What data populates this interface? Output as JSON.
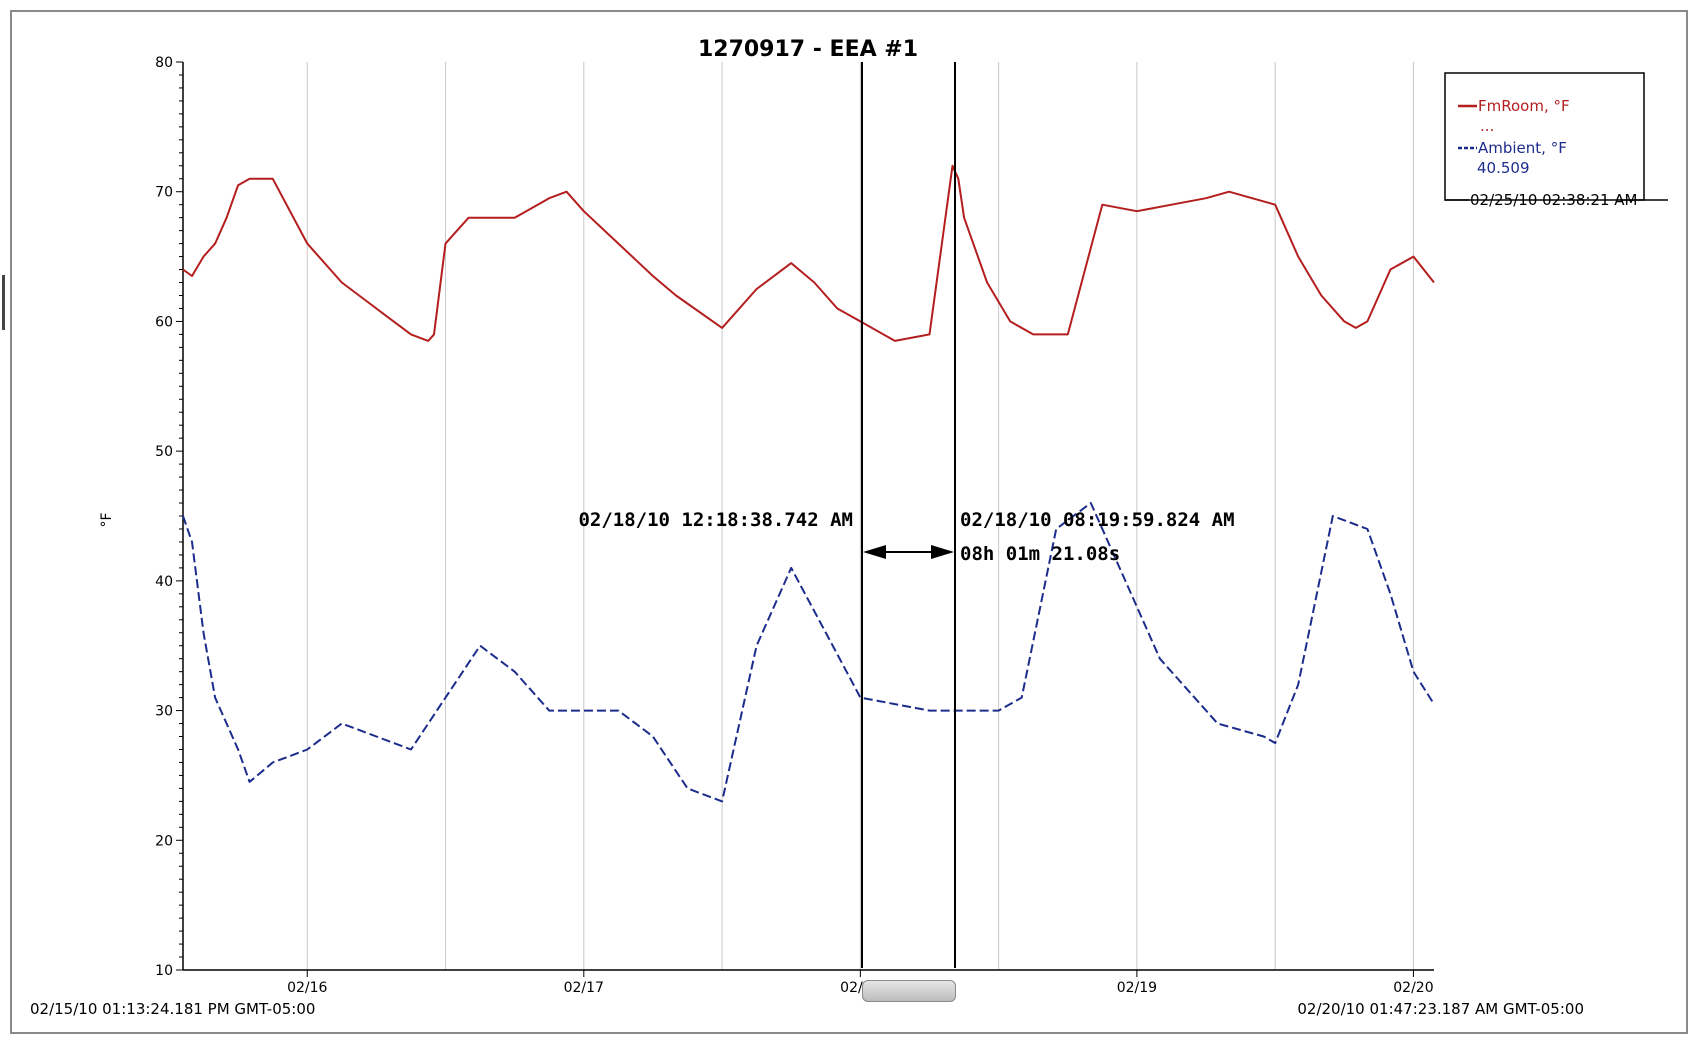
{
  "chart_data": {
    "type": "line",
    "title": "1270917 - EEA #1",
    "ylabel": "°F",
    "ylim": [
      10,
      80
    ],
    "yticks": [
      10,
      20,
      30,
      40,
      50,
      60,
      70,
      80
    ],
    "xlim": [
      "2010-02-15 13:13",
      "2010-02-20 01:47"
    ],
    "x_tick_labels": [
      "02/16",
      "02/17",
      "02/18",
      "02/19",
      "02/20"
    ],
    "x_ticks": [
      "2010-02-16 00:00",
      "2010-02-17 00:00",
      "2010-02-18 00:00",
      "2010-02-19 00:00",
      "2010-02-20 00:00"
    ],
    "grid": "vertical lines every 12 hours",
    "range_start": "02/15/10 01:13:24.181 PM GMT-05:00",
    "range_end": "02/20/10 01:47:23.187 AM GMT-05:00",
    "cursor_a": "02/18/10 12:18:38.742 AM",
    "cursor_b": "02/18/10 08:19:59.824 AM",
    "cursor_delta": "08h 01m 21.08s",
    "legend": {
      "placement": "top-right",
      "entries": [
        {
          "label": "FmRoom, °F",
          "value": "...",
          "color": "#b41e1e",
          "style": "solid"
        },
        {
          "label": "Ambient, °F",
          "value": "40.509",
          "color": "#1c2c8c",
          "style": "dashed"
        }
      ],
      "timestamp": "02/25/10 02:38:21 AM"
    },
    "series": [
      {
        "name": "FmRoom, °F",
        "color": "#b41e1e",
        "style": "solid",
        "x": [
          "2010-02-15 13:13",
          "2010-02-15 14:00",
          "2010-02-15 15:00",
          "2010-02-15 16:00",
          "2010-02-15 17:00",
          "2010-02-15 18:00",
          "2010-02-15 19:00",
          "2010-02-15 20:00",
          "2010-02-15 21:00",
          "2010-02-16 00:00",
          "2010-02-16 03:00",
          "2010-02-16 06:00",
          "2010-02-16 09:00",
          "2010-02-16 10:30",
          "2010-02-16 11:00",
          "2010-02-16 12:00",
          "2010-02-16 14:00",
          "2010-02-16 16:00",
          "2010-02-16 18:00",
          "2010-02-16 21:00",
          "2010-02-16 22:30",
          "2010-02-17 00:00",
          "2010-02-17 03:00",
          "2010-02-17 06:00",
          "2010-02-17 08:00",
          "2010-02-17 12:00",
          "2010-02-17 15:00",
          "2010-02-17 18:00",
          "2010-02-17 20:00",
          "2010-02-17 22:00",
          "2010-02-18 00:00",
          "2010-02-18 03:00",
          "2010-02-18 06:00",
          "2010-02-18 08:00",
          "2010-02-18 08:30",
          "2010-02-18 09:00",
          "2010-02-18 11:00",
          "2010-02-18 13:00",
          "2010-02-18 15:00",
          "2010-02-18 18:00",
          "2010-02-18 21:00",
          "2010-02-19 00:00",
          "2010-02-19 03:00",
          "2010-02-19 06:00",
          "2010-02-19 08:00",
          "2010-02-19 10:00",
          "2010-02-19 12:00",
          "2010-02-19 14:00",
          "2010-02-19 16:00",
          "2010-02-19 18:00",
          "2010-02-19 19:00",
          "2010-02-19 20:00",
          "2010-02-19 21:00",
          "2010-02-19 22:00",
          "2010-02-20 00:00",
          "2010-02-20 01:47"
        ],
        "y": [
          64,
          63.5,
          65,
          66,
          68,
          70.5,
          71,
          71,
          71,
          66,
          63,
          61,
          59,
          58.5,
          59,
          66,
          68,
          68,
          68,
          69.5,
          70,
          68.5,
          66,
          63.5,
          62,
          59.5,
          62.5,
          64.5,
          63,
          61,
          60,
          58.5,
          59,
          72,
          71,
          68,
          63,
          60,
          59,
          59,
          69,
          68.5,
          69,
          69.5,
          70,
          69.5,
          69,
          65,
          62,
          60,
          59.5,
          60,
          62,
          64,
          65,
          63
        ]
      },
      {
        "name": "Ambient, °F",
        "color": "#1c2c8c",
        "style": "dashed",
        "x": [
          "2010-02-15 13:13",
          "2010-02-15 14:00",
          "2010-02-15 15:00",
          "2010-02-15 16:00",
          "2010-02-15 18:00",
          "2010-02-15 19:00",
          "2010-02-15 21:00",
          "2010-02-16 00:00",
          "2010-02-16 03:00",
          "2010-02-16 06:00",
          "2010-02-16 09:00",
          "2010-02-16 12:00",
          "2010-02-16 15:00",
          "2010-02-16 18:00",
          "2010-02-16 21:00",
          "2010-02-17 00:00",
          "2010-02-17 03:00",
          "2010-02-17 06:00",
          "2010-02-17 09:00",
          "2010-02-17 12:00",
          "2010-02-17 15:00",
          "2010-02-17 18:00",
          "2010-02-17 21:00",
          "2010-02-18 00:00",
          "2010-02-18 03:00",
          "2010-02-18 06:00",
          "2010-02-18 08:00",
          "2010-02-18 09:00",
          "2010-02-18 12:00",
          "2010-02-18 14:00",
          "2010-02-18 17:00",
          "2010-02-18 20:00",
          "2010-02-18 23:00",
          "2010-02-19 02:00",
          "2010-02-19 05:00",
          "2010-02-19 07:00",
          "2010-02-19 09:00",
          "2010-02-19 11:00",
          "2010-02-19 12:00",
          "2010-02-19 14:00",
          "2010-02-19 17:00",
          "2010-02-19 20:00",
          "2010-02-19 22:00",
          "2010-02-20 00:00",
          "2010-02-20 01:47"
        ],
        "y": [
          45,
          43,
          36,
          31,
          27,
          24.5,
          26,
          27,
          29,
          28,
          27,
          31,
          35,
          33,
          30,
          30,
          30,
          28,
          24,
          23,
          35,
          41,
          36,
          31,
          30.5,
          30,
          30,
          30,
          30,
          31,
          44,
          46,
          40,
          34,
          31,
          29,
          28.5,
          28,
          27.5,
          32,
          45,
          44,
          39,
          33,
          30.5
        ]
      }
    ]
  }
}
